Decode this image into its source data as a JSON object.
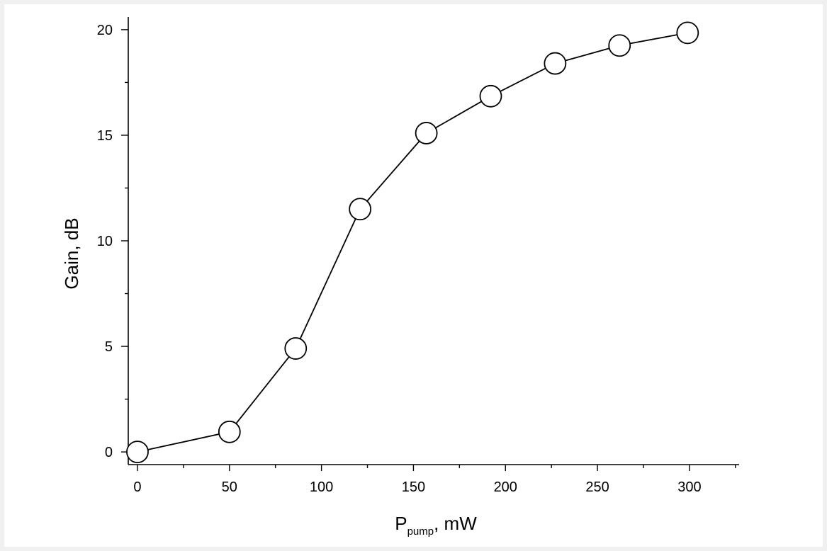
{
  "chart_data": {
    "type": "line",
    "title": "",
    "xlabel": {
      "main": "P",
      "subscript": "pump",
      "suffix": ", mW"
    },
    "ylabel": "Gain, dB",
    "xlim": [
      -5,
      327
    ],
    "ylim": [
      -0.6,
      20.6
    ],
    "xticks": [
      0,
      50,
      100,
      150,
      200,
      250,
      300
    ],
    "xtick_labels": [
      "0",
      "50",
      "100",
      "150",
      "200",
      "250",
      "300"
    ],
    "yticks": [
      0,
      5,
      10,
      15,
      20
    ],
    "ytick_labels": [
      "0",
      "5",
      "10",
      "15",
      "20"
    ],
    "x_minor_step": 25,
    "y_minor_step": 2.5,
    "grid": false,
    "legend": "none",
    "marker": "open-circle",
    "series": [
      {
        "x": [
          0,
          50,
          86,
          121,
          157,
          192,
          227,
          262,
          299
        ],
        "y": [
          0.0,
          0.95,
          4.9,
          11.5,
          15.1,
          16.85,
          18.4,
          19.25,
          19.85
        ]
      }
    ],
    "colors": {
      "line": "#000000",
      "marker_fill": "#ffffff",
      "background": "#ffffff",
      "border": "#f0f0f0"
    }
  }
}
